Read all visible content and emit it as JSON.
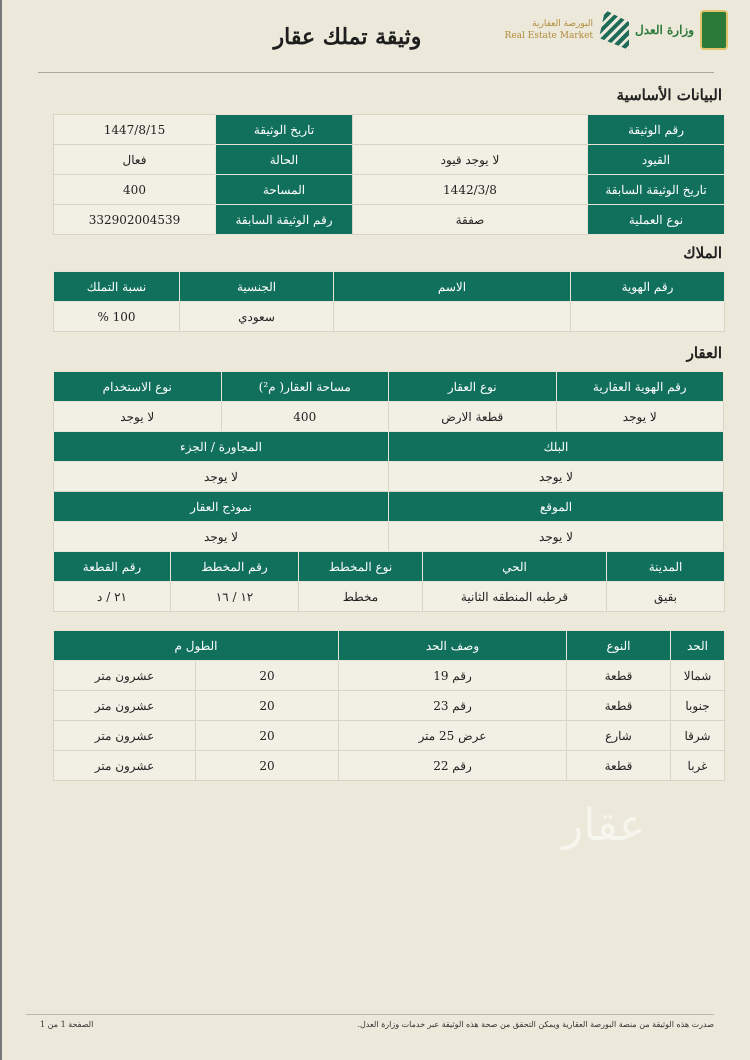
{
  "header": {
    "title": "وثيقة تملك عقار",
    "logos": {
      "market_ar": "البورصة العقارية",
      "market_en": "Real Estate Market",
      "ministry": "وزارة العدل"
    }
  },
  "basic": {
    "title": "البيانات الأساسية",
    "rows": [
      {
        "l1": "رقم الوثيقة",
        "v1": "",
        "l2": "تاريخ الوثيقة",
        "v2": "1447/8/15"
      },
      {
        "l1": "القيود",
        "v1": "لا يوجد قيود",
        "l2": "الحالة",
        "v2": "فعال"
      },
      {
        "l1": "تاريخ الوثيقة السابقة",
        "v1": "1442/3/8",
        "l2": "المساحة",
        "v2": "400"
      },
      {
        "l1": "نوع العملية",
        "v1": "صفقة",
        "l2": "رقم الوثيقة السابقة",
        "v2": "332902004539"
      }
    ]
  },
  "owners": {
    "title": "الملاك",
    "headers": [
      "رقم الهوية",
      "الاسم",
      "الجنسية",
      "نسبة التملك"
    ],
    "row": [
      "",
      "",
      "سعودي",
      "100 %"
    ]
  },
  "property": {
    "title": "العقار",
    "h1": [
      "رقم الهوية العقارية",
      "نوع العقار",
      "مساحة العقار( م²)",
      "نوع الاستخدام"
    ],
    "r1": [
      "لا يوجد",
      "قطعة الارض",
      "400",
      "لا يوجد"
    ],
    "h2": [
      "البلك",
      "المجاورة / الجزء"
    ],
    "r2": [
      "لا يوجد",
      "لا يوجد"
    ],
    "h3": [
      "الموقع",
      "نموذج العقار"
    ],
    "r3": [
      "لا يوجد",
      "لا يوجد"
    ],
    "h4": [
      "المدينة",
      "الحي",
      "نوع المخطط",
      "رقم المخطط",
      "رقم القطعة"
    ],
    "r4": [
      "بقيق",
      "قرطبه المنطقه الثانية",
      "مخطط",
      "١٢ / ١٦",
      "٢١ / د"
    ]
  },
  "bounds": {
    "headers": [
      "الحد",
      "النوع",
      "وصف الحد",
      "الطول م"
    ],
    "rows": [
      [
        "شمالا",
        "قطعة",
        "رقم 19",
        "20",
        "عشرون متر"
      ],
      [
        "جنوبا",
        "قطعة",
        "رقم 23",
        "20",
        "عشرون متر"
      ],
      [
        "شرقا",
        "شارع",
        "عرض 25 متر",
        "20",
        "عشرون متر"
      ],
      [
        "غربا",
        "قطعة",
        "رقم 22",
        "20",
        "عشرون متر"
      ]
    ]
  },
  "watermark": "عقار",
  "footer": {
    "note": "صدرت هذه الوثيقة من منصة البورصة العقارية ويمكن التحقق من صحة هذه الوثيقة عبر خدمات وزارة العدل.",
    "page": "الصفحة 1 من 1"
  }
}
